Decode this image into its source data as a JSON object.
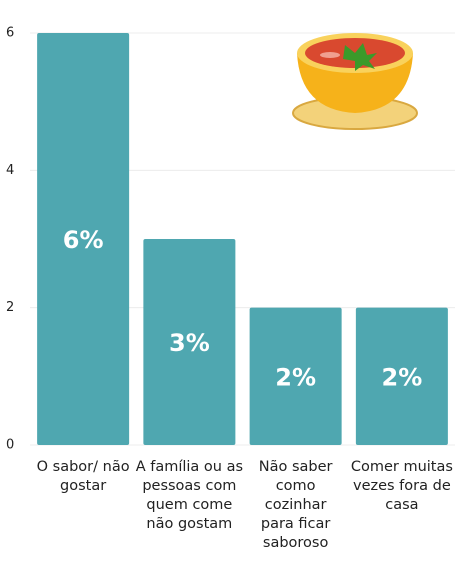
{
  "chart_data": {
    "type": "bar",
    "categories": [
      "O sabor/ não gostar",
      "A família ou as pessoas com quem come não gostam",
      "Não saber como cozinhar para ficar saboroso",
      "Comer muitas vezes fora de casa"
    ],
    "values": [
      6,
      3,
      2,
      2
    ],
    "value_labels": [
      "6%",
      "3%",
      "2%",
      "2%"
    ],
    "color": "#4fa7b0",
    "ylim": [
      0,
      6
    ],
    "yticks": [
      0,
      2,
      4,
      6
    ],
    "grid": true
  }
}
